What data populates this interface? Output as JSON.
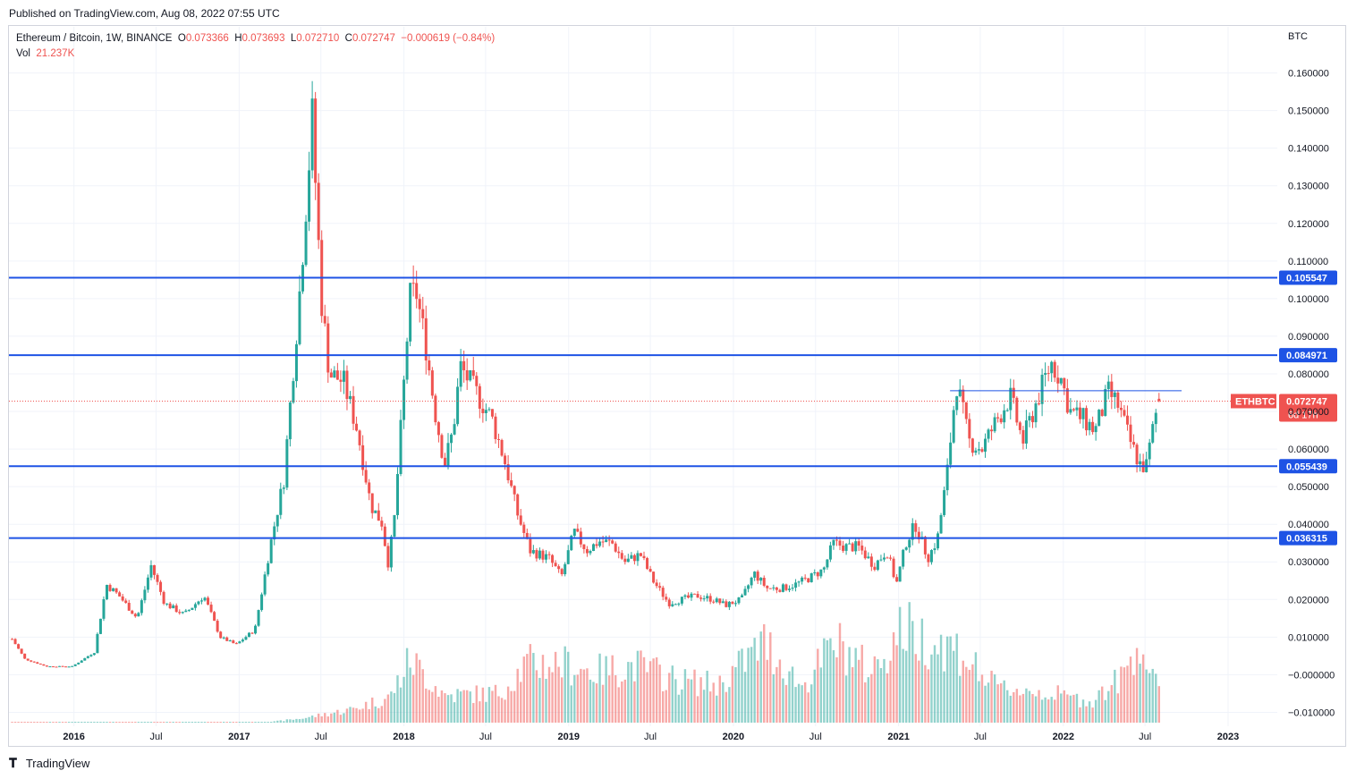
{
  "header": {
    "published": "Published on TradingView.com, Aug 08, 2022 07:55 UTC"
  },
  "legend": {
    "symbol": "Ethereum / Bitcoin, 1W, BINANCE",
    "o_label": "O",
    "o_value": "0.073366",
    "h_label": "H",
    "h_value": "0.073693",
    "l_label": "L",
    "l_value": "0.072710",
    "c_label": "C",
    "c_value": "0.072747",
    "change": "−0.000619 (−0.84%)",
    "vol_label": "Vol",
    "vol_value": "21.237K"
  },
  "footer": {
    "brand": "TradingView"
  },
  "colors": {
    "up": "#26a69a",
    "down": "#ef5350",
    "level_line": "#1e53e5",
    "grid": "#f0f3fa"
  },
  "chart_data": {
    "type": "candlestick",
    "title": "Ethereum / Bitcoin, 1W, BINANCE",
    "currency": "BTC",
    "ylim": [
      -0.0137,
      0.1687
    ],
    "y_ticks": [
      -0.01,
      0.0,
      0.01,
      0.02,
      0.03,
      0.04,
      0.05,
      0.06,
      0.07,
      0.08,
      0.09,
      0.1,
      0.11,
      0.12,
      0.13,
      0.14,
      0.15,
      0.16
    ],
    "y_tick_labels": [
      "−0.010000",
      "−0.000000",
      "0.010000",
      "0.020000",
      "0.030000",
      "0.040000",
      "0.050000",
      "0.060000",
      "0.070000",
      "0.080000",
      "0.090000",
      "0.100000",
      "0.110000",
      "0.120000",
      "0.130000",
      "0.140000",
      "0.150000",
      "0.160000"
    ],
    "x_ticks": [
      "2016-01-01",
      "2016-07-01",
      "2017-01-01",
      "2017-07-01",
      "2018-01-01",
      "2018-07-01",
      "2019-01-01",
      "2019-07-01",
      "2020-01-01",
      "2020-07-01",
      "2021-01-01",
      "2021-07-01",
      "2022-01-01",
      "2022-07-01",
      "2023-01-01"
    ],
    "x_tick_labels": [
      "2016",
      "Jul",
      "2017",
      "Jul",
      "2018",
      "Jul",
      "2019",
      "Jul",
      "2020",
      "Jul",
      "2021",
      "Jul",
      "2022",
      "Jul",
      "2023"
    ],
    "x_range": [
      "2015-08-10",
      "2023-04-20"
    ],
    "horizontal_levels": [
      {
        "value": 0.105547,
        "label": "0.105547"
      },
      {
        "value": 0.084971,
        "label": "0.084971"
      },
      {
        "value": 0.055439,
        "label": "0.055439"
      },
      {
        "value": 0.036315,
        "label": "0.036315"
      }
    ],
    "trendline": {
      "start": "2021-04-25",
      "end": "2022-09-20",
      "value": 0.0755
    },
    "last_price": {
      "symbol": "ETHBTC",
      "value": 0.072747,
      "label": "0.072747",
      "countdown": "6d 17h"
    },
    "price_anchors": [
      [
        "2015-08-17",
        0.0095
      ],
      [
        "2015-09-14",
        0.0042
      ],
      [
        "2015-11-01",
        0.0022
      ],
      [
        "2015-12-28",
        0.0022
      ],
      [
        "2016-02-15",
        0.006
      ],
      [
        "2016-03-13",
        0.024
      ],
      [
        "2016-04-10",
        0.021
      ],
      [
        "2016-05-20",
        0.015
      ],
      [
        "2016-06-20",
        0.029
      ],
      [
        "2016-07-20",
        0.019
      ],
      [
        "2016-09-01",
        0.016
      ],
      [
        "2016-10-15",
        0.021
      ],
      [
        "2016-11-20",
        0.01
      ],
      [
        "2016-12-25",
        0.008
      ],
      [
        "2017-02-05",
        0.012
      ],
      [
        "2017-03-12",
        0.035
      ],
      [
        "2017-04-10",
        0.052
      ],
      [
        "2017-05-14",
        0.1
      ],
      [
        "2017-06-12",
        0.148
      ],
      [
        "2017-07-02",
        0.1
      ],
      [
        "2017-07-20",
        0.08
      ],
      [
        "2017-08-20",
        0.078
      ],
      [
        "2017-09-20",
        0.065
      ],
      [
        "2017-10-20",
        0.045
      ],
      [
        "2017-11-15",
        0.04
      ],
      [
        "2017-11-26",
        0.029
      ],
      [
        "2017-12-10",
        0.04
      ],
      [
        "2017-12-25",
        0.065
      ],
      [
        "2018-01-14",
        0.1
      ],
      [
        "2018-01-28",
        0.102
      ],
      [
        "2018-02-18",
        0.088
      ],
      [
        "2018-03-11",
        0.07
      ],
      [
        "2018-04-01",
        0.056
      ],
      [
        "2018-04-20",
        0.065
      ],
      [
        "2018-05-06",
        0.082
      ],
      [
        "2018-06-10",
        0.075
      ],
      [
        "2018-07-15",
        0.068
      ],
      [
        "2018-08-12",
        0.057
      ],
      [
        "2018-09-09",
        0.043
      ],
      [
        "2018-10-07",
        0.033
      ],
      [
        "2018-11-18",
        0.031
      ],
      [
        "2018-12-16",
        0.026
      ],
      [
        "2019-01-13",
        0.038
      ],
      [
        "2019-02-10",
        0.033
      ],
      [
        "2019-03-10",
        0.0355
      ],
      [
        "2019-04-07",
        0.035
      ],
      [
        "2019-05-05",
        0.03
      ],
      [
        "2019-06-09",
        0.032
      ],
      [
        "2019-07-07",
        0.025
      ],
      [
        "2019-08-11",
        0.019
      ],
      [
        "2019-09-08",
        0.02
      ],
      [
        "2019-10-13",
        0.021
      ],
      [
        "2019-11-17",
        0.02
      ],
      [
        "2019-12-15",
        0.0185
      ],
      [
        "2020-01-19",
        0.02
      ],
      [
        "2020-02-16",
        0.027
      ],
      [
        "2020-03-15",
        0.023
      ],
      [
        "2020-04-19",
        0.023
      ],
      [
        "2020-05-17",
        0.024
      ],
      [
        "2020-06-14",
        0.0255
      ],
      [
        "2020-07-19",
        0.028
      ],
      [
        "2020-08-09",
        0.035
      ],
      [
        "2020-09-06",
        0.034
      ],
      [
        "2020-10-04",
        0.034
      ],
      [
        "2020-11-08",
        0.029
      ],
      [
        "2020-12-06",
        0.033
      ],
      [
        "2020-12-27",
        0.024
      ],
      [
        "2021-01-17",
        0.035
      ],
      [
        "2021-02-07",
        0.04
      ],
      [
        "2021-03-07",
        0.031
      ],
      [
        "2021-03-28",
        0.036
      ],
      [
        "2021-04-18",
        0.053
      ],
      [
        "2021-05-09",
        0.078
      ],
      [
        "2021-06-06",
        0.062
      ],
      [
        "2021-07-04",
        0.06
      ],
      [
        "2021-08-08",
        0.068
      ],
      [
        "2021-09-05",
        0.074
      ],
      [
        "2021-10-03",
        0.062
      ],
      [
        "2021-11-07",
        0.074
      ],
      [
        "2021-12-05",
        0.083
      ],
      [
        "2021-12-26",
        0.079
      ],
      [
        "2022-01-16",
        0.07
      ],
      [
        "2022-02-13",
        0.068
      ],
      [
        "2022-03-13",
        0.065
      ],
      [
        "2022-04-10",
        0.075
      ],
      [
        "2022-05-01",
        0.072
      ],
      [
        "2022-05-29",
        0.062
      ],
      [
        "2022-06-19",
        0.056
      ],
      [
        "2022-07-03",
        0.055
      ],
      [
        "2022-07-24",
        0.069
      ],
      [
        "2022-08-07",
        0.0727
      ]
    ],
    "volume_anchors": [
      [
        "2015-08-17",
        0.0005
      ],
      [
        "2017-03-01",
        0.0006
      ],
      [
        "2017-05-20",
        0.02
      ],
      [
        "2017-09-01",
        0.06
      ],
      [
        "2017-12-01",
        0.12
      ],
      [
        "2018-01-15",
        0.3
      ],
      [
        "2018-04-01",
        0.13
      ],
      [
        "2018-08-01",
        0.14
      ],
      [
        "2018-10-01",
        0.28
      ],
      [
        "2018-12-15",
        0.28
      ],
      [
        "2019-03-01",
        0.24
      ],
      [
        "2019-06-01",
        0.27
      ],
      [
        "2019-09-01",
        0.2
      ],
      [
        "2019-12-01",
        0.18
      ],
      [
        "2020-03-10",
        0.38
      ],
      [
        "2020-06-01",
        0.17
      ],
      [
        "2020-08-15",
        0.38
      ],
      [
        "2020-11-01",
        0.24
      ],
      [
        "2021-01-10",
        0.45
      ],
      [
        "2021-02-20",
        0.4
      ],
      [
        "2021-05-10",
        0.35
      ],
      [
        "2021-08-01",
        0.17
      ],
      [
        "2021-12-01",
        0.14
      ],
      [
        "2022-03-01",
        0.1
      ],
      [
        "2022-05-15",
        0.22
      ],
      [
        "2022-06-15",
        0.4
      ],
      [
        "2022-08-07",
        0.1
      ]
    ]
  }
}
